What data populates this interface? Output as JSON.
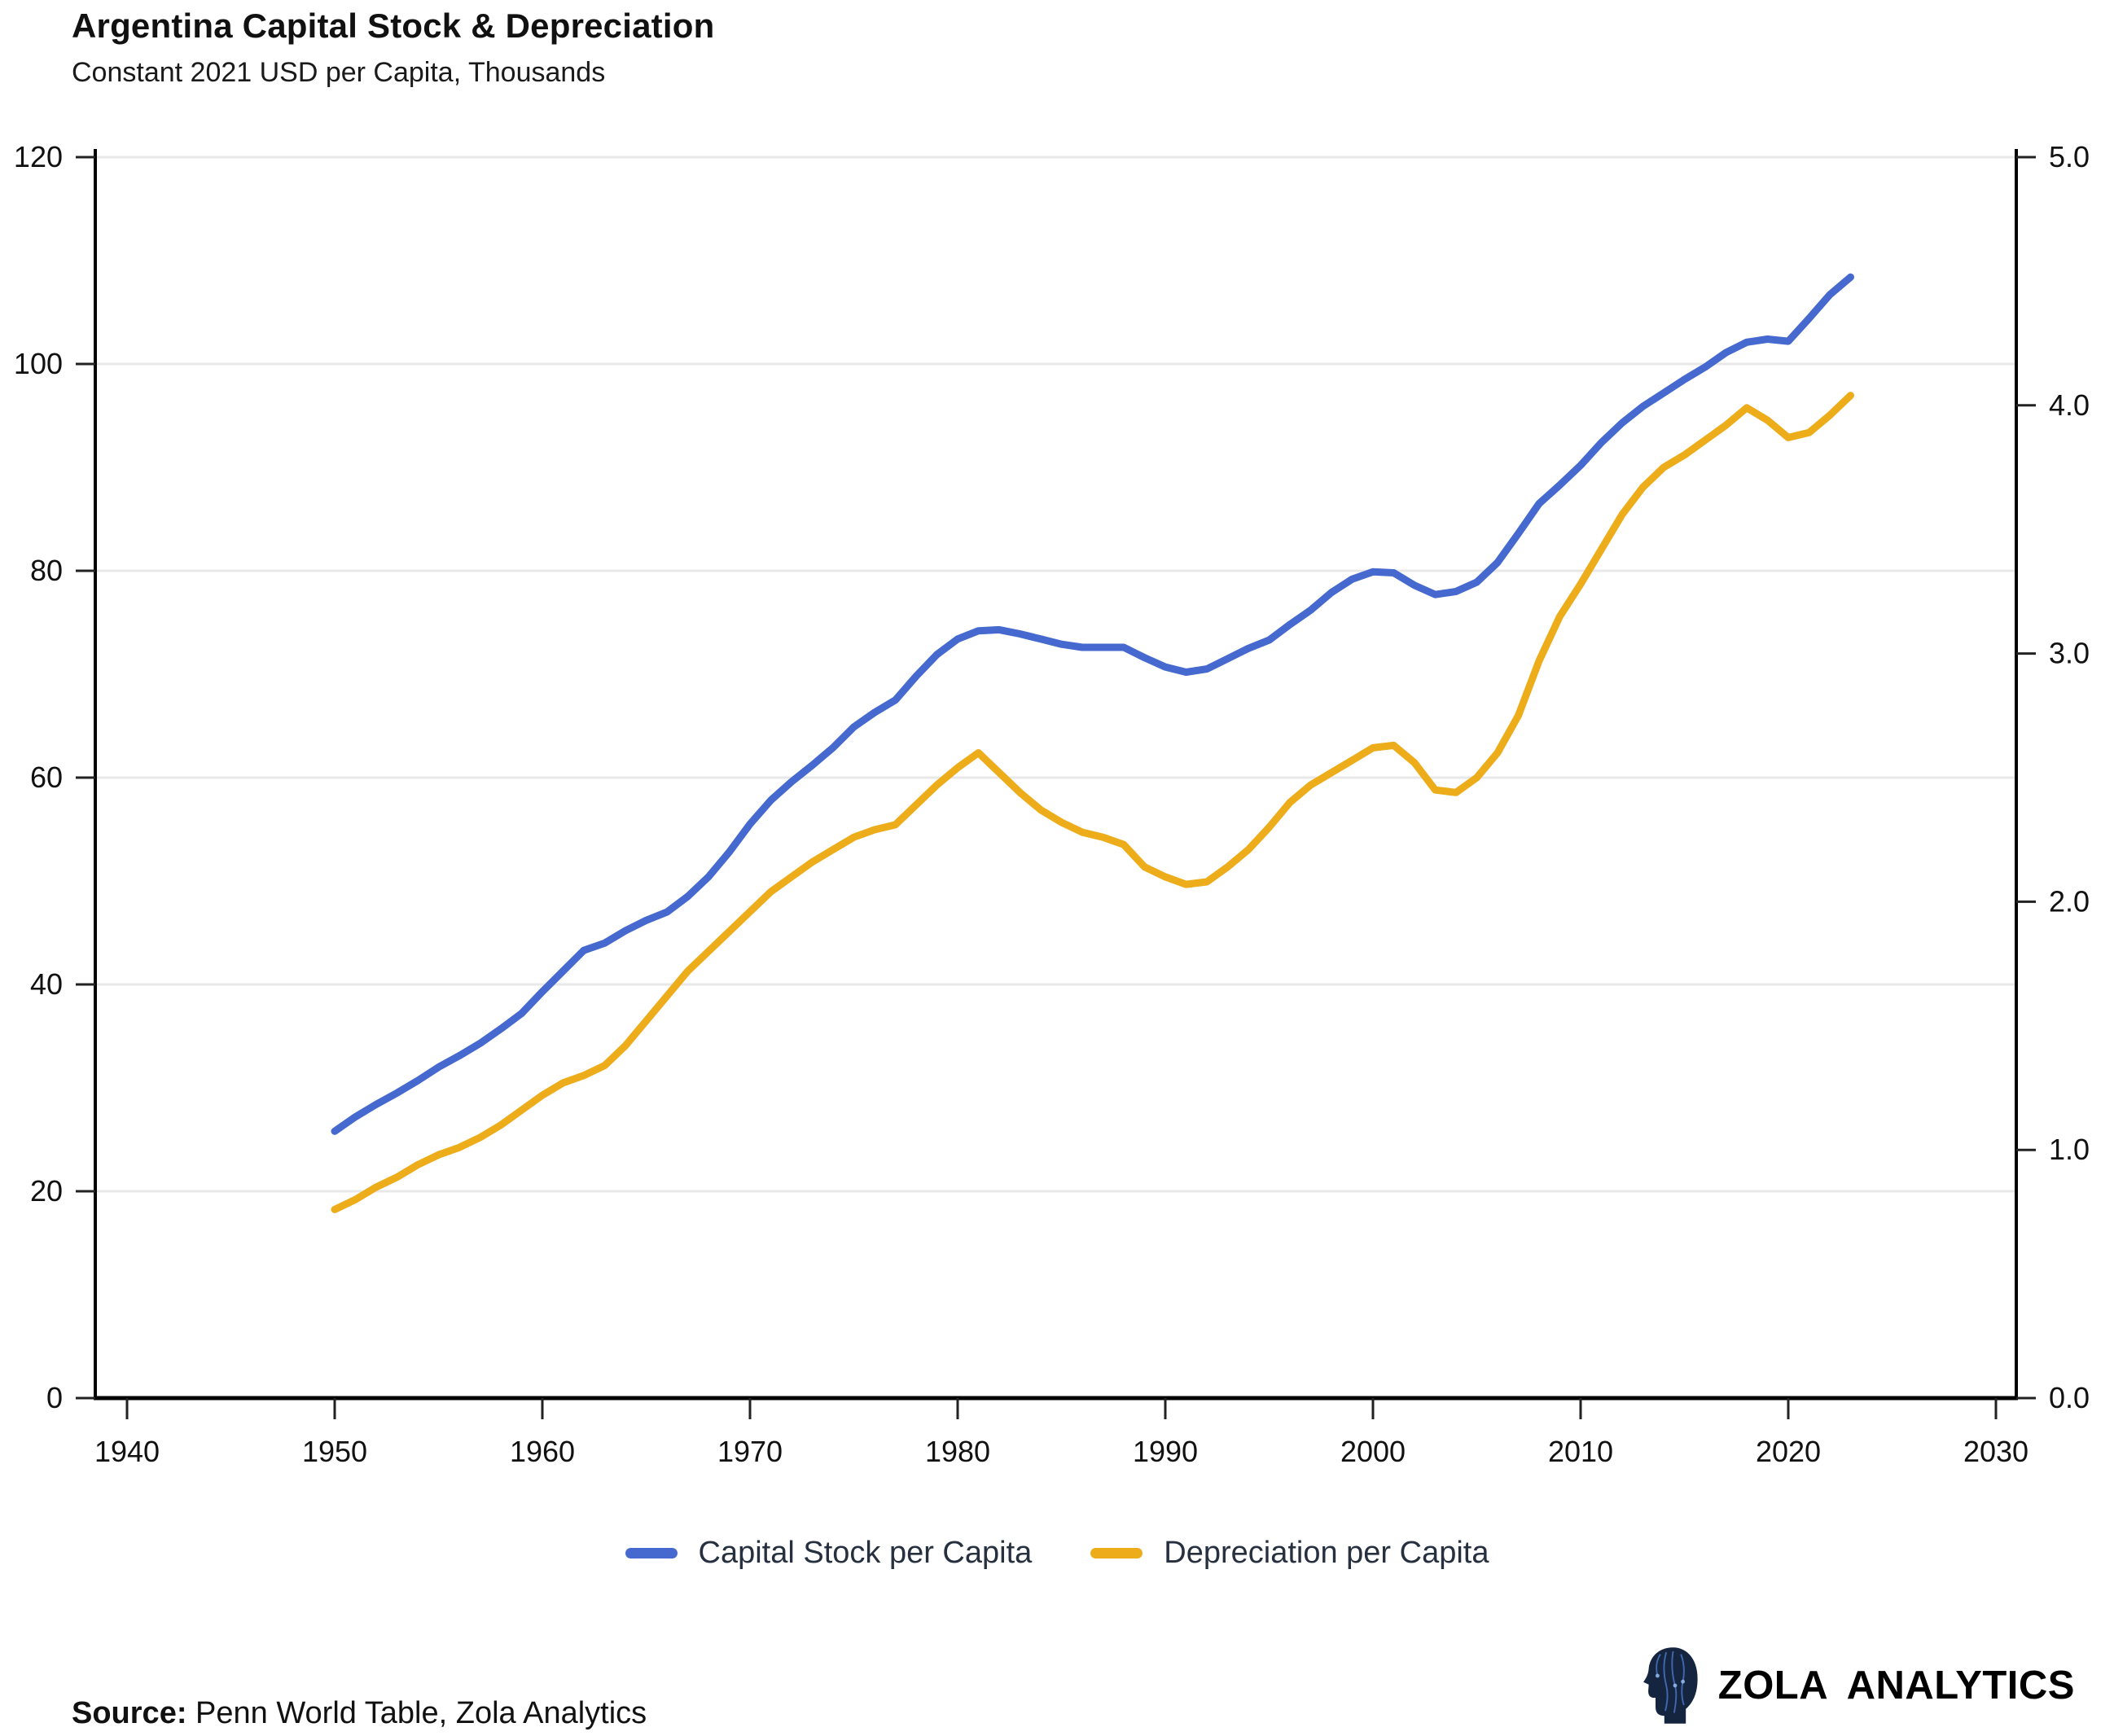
{
  "header": {
    "title": "Argentina Capital Stock & Depreciation",
    "subtitle": "Constant 2021 USD per Capita, Thousands"
  },
  "chart_data": {
    "type": "line",
    "title": "Argentina Capital Stock & Depreciation",
    "subtitle": "Constant 2021 USD per Capita, Thousands",
    "x": [
      1950,
      1951,
      1952,
      1953,
      1954,
      1955,
      1956,
      1957,
      1958,
      1959,
      1960,
      1961,
      1962,
      1963,
      1964,
      1965,
      1966,
      1967,
      1968,
      1969,
      1970,
      1971,
      1972,
      1973,
      1974,
      1975,
      1976,
      1977,
      1978,
      1979,
      1980,
      1981,
      1982,
      1983,
      1984,
      1985,
      1986,
      1987,
      1988,
      1989,
      1990,
      1991,
      1992,
      1993,
      1994,
      1995,
      1996,
      1997,
      1998,
      1999,
      2000,
      2001,
      2002,
      2003,
      2004,
      2005,
      2006,
      2007,
      2008,
      2009,
      2010,
      2011,
      2012,
      2013,
      2014,
      2015,
      2016,
      2017,
      2018,
      2019,
      2020,
      2021,
      2022,
      2023
    ],
    "series": [
      {
        "name": "Capital Stock per Capita",
        "axis": "left",
        "color": "#4569cf",
        "values": [
          25.8,
          27.2,
          28.4,
          29.5,
          30.7,
          32.0,
          33.1,
          34.3,
          35.7,
          37.2,
          39.3,
          41.3,
          43.3,
          44.0,
          45.2,
          46.2,
          47.0,
          48.5,
          50.4,
          52.8,
          55.5,
          57.8,
          59.6,
          61.2,
          62.9,
          64.9,
          66.3,
          67.5,
          69.8,
          71.9,
          73.4,
          74.2,
          74.3,
          73.9,
          73.4,
          72.9,
          72.6,
          72.6,
          72.6,
          71.6,
          70.7,
          70.2,
          70.5,
          71.5,
          72.5,
          73.3,
          74.8,
          76.2,
          77.9,
          79.2,
          79.9,
          79.8,
          78.6,
          77.7,
          78.0,
          78.9,
          80.8,
          83.6,
          86.5,
          88.3,
          90.2,
          92.4,
          94.3,
          95.9,
          97.2,
          98.5,
          99.7,
          101.1,
          102.1,
          102.4,
          102.2,
          104.4,
          106.7,
          108.4
        ]
      },
      {
        "name": "Depreciation per Capita",
        "axis": "right",
        "color": "#edad1b",
        "values": [
          0.76,
          0.8,
          0.85,
          0.89,
          0.94,
          0.98,
          1.01,
          1.05,
          1.1,
          1.16,
          1.22,
          1.27,
          1.3,
          1.34,
          1.42,
          1.52,
          1.62,
          1.72,
          1.8,
          1.88,
          1.96,
          2.04,
          2.1,
          2.16,
          2.21,
          2.26,
          2.29,
          2.31,
          2.39,
          2.47,
          2.54,
          2.6,
          2.52,
          2.44,
          2.37,
          2.32,
          2.28,
          2.26,
          2.23,
          2.14,
          2.1,
          2.07,
          2.08,
          2.14,
          2.21,
          2.3,
          2.4,
          2.47,
          2.52,
          2.57,
          2.62,
          2.63,
          2.56,
          2.45,
          2.44,
          2.5,
          2.6,
          2.75,
          2.97,
          3.15,
          3.28,
          3.42,
          3.56,
          3.67,
          3.75,
          3.8,
          3.86,
          3.92,
          3.99,
          3.94,
          3.87,
          3.89,
          3.96,
          4.04
        ]
      }
    ],
    "x_axis": {
      "range": [
        1940,
        2030
      ],
      "ticks": [
        1940,
        1950,
        1960,
        1970,
        1980,
        1990,
        2000,
        2010,
        2020,
        2030
      ]
    },
    "y_axis_left": {
      "range": [
        0,
        120
      ],
      "ticks": [
        0,
        20,
        40,
        60,
        80,
        100,
        120
      ],
      "tick_labels": [
        "0",
        "20",
        "40",
        "60",
        "80",
        "100",
        "120"
      ]
    },
    "y_axis_right": {
      "range": [
        0,
        5
      ],
      "ticks": [
        0,
        1,
        2,
        3,
        4,
        5
      ],
      "tick_labels": [
        "0.0",
        "1.0",
        "2.0",
        "3.0",
        "4.0",
        "5.0"
      ]
    },
    "grid": "horizontal",
    "legend_position": "bottom",
    "colors": {
      "grid": "#e8e8e8",
      "axis": "#000000",
      "tick_label": "#111111"
    }
  },
  "legend": {
    "items": [
      {
        "label": "Capital Stock per Capita",
        "color": "#4569cf"
      },
      {
        "label": "Depreciation per Capita",
        "color": "#edad1b"
      }
    ]
  },
  "footer": {
    "source_label": "Source:",
    "source_text": "Penn World Table, Zola Analytics",
    "brand_name": "ZOLA ANALYTICS"
  }
}
